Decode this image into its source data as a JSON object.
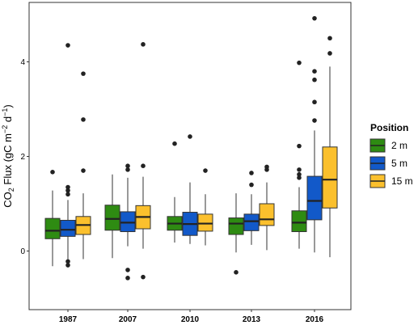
{
  "chart_data": {
    "type": "boxplot",
    "title": "",
    "xlabel": "",
    "ylabel": {
      "prefix": "CO",
      "sub": "2",
      "middle": " Flux (gC m",
      "sup1": "−2",
      "middle2": " d",
      "sup2": "−1",
      "suffix": ")"
    },
    "ylim": [
      -0.85,
      5.2
    ],
    "yticks": [
      0,
      2,
      4
    ],
    "grid": false,
    "legend": {
      "title": "Position",
      "placement": "right",
      "entries": [
        "2 m",
        "5 m",
        "15 m"
      ]
    },
    "categories": [
      "1987",
      "2007",
      "2010",
      "2013",
      "2016"
    ],
    "series": [
      {
        "name": "2 m",
        "color": "#2e8b12",
        "boxes": [
          {
            "whisker_low": -0.32,
            "q1": 0.26,
            "median": 0.43,
            "q3": 0.69,
            "whisker_high": 1.28,
            "outliers": [
              1.67
            ]
          },
          {
            "whisker_low": -0.15,
            "q1": 0.44,
            "median": 0.68,
            "q3": 0.97,
            "whisker_high": 1.62,
            "outliers": []
          },
          {
            "whisker_low": 0.18,
            "q1": 0.44,
            "median": 0.58,
            "q3": 0.73,
            "whisker_high": 1.14,
            "outliers": [
              2.27
            ]
          },
          {
            "whisker_low": -0.03,
            "q1": 0.35,
            "median": 0.58,
            "q3": 0.7,
            "whisker_high": 1.22,
            "outliers": [
              -0.45
            ]
          },
          {
            "whisker_low": 0.05,
            "q1": 0.41,
            "median": 0.6,
            "q3": 0.85,
            "whisker_high": 1.35,
            "outliers": [
              1.55,
              1.62,
              1.72,
              2.22,
              3.98
            ]
          }
        ]
      },
      {
        "name": "5 m",
        "color": "#1259c9",
        "boxes": [
          {
            "whisker_low": -0.22,
            "q1": 0.31,
            "median": 0.45,
            "q3": 0.65,
            "whisker_high": 1.08,
            "outliers": [
              1.2,
              1.28,
              1.35,
              -0.22,
              -0.3,
              4.35
            ]
          },
          {
            "whisker_low": 0.1,
            "q1": 0.41,
            "median": 0.6,
            "q3": 0.83,
            "whisker_high": 1.55,
            "outliers": [
              1.72,
              1.8,
              -0.4,
              -0.57
            ]
          },
          {
            "whisker_low": 0.15,
            "q1": 0.33,
            "median": 0.57,
            "q3": 0.82,
            "whisker_high": 1.45,
            "outliers": [
              2.42
            ]
          },
          {
            "whisker_low": 0.13,
            "q1": 0.43,
            "median": 0.63,
            "q3": 0.78,
            "whisker_high": 1.2,
            "outliers": [
              1.4,
              1.65
            ]
          },
          {
            "whisker_low": -0.03,
            "q1": 0.66,
            "median": 1.06,
            "q3": 1.58,
            "whisker_high": 2.55,
            "outliers": [
              2.76,
              3.15,
              3.62,
              3.8,
              4.92
            ]
          }
        ]
      },
      {
        "name": "15 m",
        "color": "#fbc02d",
        "boxes": [
          {
            "whisker_low": -0.17,
            "q1": 0.35,
            "median": 0.55,
            "q3": 0.73,
            "whisker_high": 1.22,
            "outliers": [
              1.7,
              2.78,
              3.75
            ]
          },
          {
            "whisker_low": 0.05,
            "q1": 0.47,
            "median": 0.72,
            "q3": 0.96,
            "whisker_high": 1.57,
            "outliers": [
              1.8,
              -0.55,
              4.37
            ]
          },
          {
            "whisker_low": 0.12,
            "q1": 0.42,
            "median": 0.58,
            "q3": 0.78,
            "whisker_high": 1.2,
            "outliers": [
              1.7
            ]
          },
          {
            "whisker_low": 0.02,
            "q1": 0.54,
            "median": 0.67,
            "q3": 1.0,
            "whisker_high": 1.45,
            "outliers": [
              1.72,
              1.78
            ]
          },
          {
            "whisker_low": -0.13,
            "q1": 0.91,
            "median": 1.51,
            "q3": 2.2,
            "whisker_high": 3.9,
            "outliers": [
              4.18,
              4.5
            ]
          }
        ]
      }
    ]
  }
}
